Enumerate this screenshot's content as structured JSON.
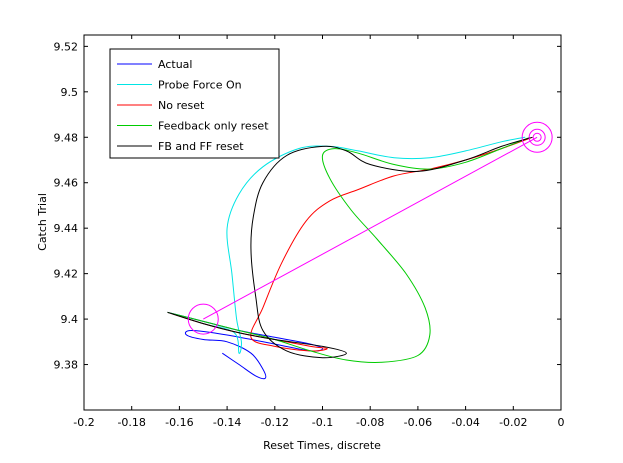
{
  "chart_data": {
    "type": "line",
    "title": "",
    "xlabel": "Reset Times, discrete",
    "ylabel": "Catch Trial",
    "xlim": [
      -0.2,
      0.0
    ],
    "ylim": [
      9.36,
      9.525
    ],
    "xticks": [
      -0.2,
      -0.18,
      -0.16,
      -0.14,
      -0.12,
      -0.1,
      -0.08,
      -0.06,
      -0.04,
      -0.02,
      0
    ],
    "xtick_labels": [
      "-0.2",
      "-0.18",
      "-0.16",
      "-0.14",
      "-0.12",
      "-0.1",
      "-0.08",
      "-0.06",
      "-0.04",
      "-0.02",
      "0"
    ],
    "yticks": [
      9.38,
      9.4,
      9.42,
      9.44,
      9.46,
      9.48,
      9.5,
      9.52
    ],
    "ytick_labels": [
      "9.38",
      "9.4",
      "9.42",
      "9.44",
      "9.46",
      "9.48",
      "9.5",
      "9.52"
    ],
    "grid": false,
    "legend_position": "top-left",
    "series": [
      {
        "name": "Actual",
        "color": "#0000ff",
        "x": [
          -0.165,
          -0.15,
          -0.135,
          -0.12,
          -0.105,
          -0.1,
          -0.105,
          -0.12,
          -0.14,
          -0.155,
          -0.157,
          -0.15,
          -0.14,
          -0.13,
          -0.125,
          -0.124,
          -0.128,
          -0.135,
          -0.142
        ],
        "y": [
          9.403,
          9.399,
          9.395,
          9.392,
          9.389,
          9.387,
          9.386,
          9.389,
          9.393,
          9.395,
          9.393,
          9.391,
          9.39,
          9.385,
          9.378,
          9.374,
          9.375,
          9.38,
          9.385
        ]
      },
      {
        "name": "Probe Force On",
        "color": "#00e5e5",
        "x": [
          -0.165,
          -0.15,
          -0.137,
          -0.135,
          -0.134,
          -0.136,
          -0.138,
          -0.14,
          -0.135,
          -0.125,
          -0.11,
          -0.097,
          -0.085,
          -0.07,
          -0.055,
          -0.04,
          -0.025,
          -0.015
        ],
        "y": [
          9.403,
          9.398,
          9.394,
          9.385,
          9.39,
          9.4,
          9.42,
          9.44,
          9.455,
          9.467,
          9.475,
          9.476,
          9.474,
          9.471,
          9.471,
          9.474,
          9.478,
          9.48
        ]
      },
      {
        "name": "No reset",
        "color": "#ff0000",
        "x": [
          -0.165,
          -0.15,
          -0.135,
          -0.12,
          -0.105,
          -0.098,
          -0.105,
          -0.12,
          -0.13,
          -0.125,
          -0.117,
          -0.107,
          -0.097,
          -0.085,
          -0.07,
          -0.055,
          -0.04,
          -0.025,
          -0.012
        ],
        "y": [
          9.403,
          9.398,
          9.394,
          9.391,
          9.388,
          9.387,
          9.386,
          9.388,
          9.392,
          9.405,
          9.425,
          9.443,
          9.452,
          9.457,
          9.463,
          9.466,
          9.47,
          9.475,
          9.48
        ]
      },
      {
        "name": "Feedback only reset",
        "color": "#00cc00",
        "x": [
          -0.165,
          -0.15,
          -0.135,
          -0.12,
          -0.105,
          -0.09,
          -0.075,
          -0.06,
          -0.055,
          -0.057,
          -0.065,
          -0.077,
          -0.088,
          -0.097,
          -0.1,
          -0.095,
          -0.085,
          -0.07,
          -0.055,
          -0.04,
          -0.025,
          -0.013
        ],
        "y": [
          9.403,
          9.399,
          9.395,
          9.391,
          9.386,
          9.382,
          9.381,
          9.384,
          9.393,
          9.405,
          9.42,
          9.435,
          9.448,
          9.462,
          9.472,
          9.475,
          9.473,
          9.468,
          9.466,
          9.469,
          9.475,
          9.48
        ]
      },
      {
        "name": "FB and FF reset",
        "color": "#000000",
        "x": [
          -0.165,
          -0.15,
          -0.135,
          -0.12,
          -0.1,
          -0.09,
          -0.1,
          -0.115,
          -0.125,
          -0.128,
          -0.13,
          -0.129,
          -0.125,
          -0.115,
          -0.1,
          -0.09,
          -0.08,
          -0.06,
          -0.04,
          -0.025,
          -0.012
        ],
        "y": [
          9.403,
          9.398,
          9.394,
          9.391,
          9.388,
          9.385,
          9.383,
          9.386,
          9.395,
          9.41,
          9.43,
          9.445,
          9.46,
          9.472,
          9.476,
          9.474,
          9.468,
          9.465,
          9.47,
          9.476,
          9.48
        ]
      },
      {
        "name": "",
        "color": "#ff00ff",
        "x": [
          -0.15,
          -0.01
        ],
        "y": [
          9.4,
          9.48
        ]
      }
    ],
    "markers": [
      {
        "x": -0.15,
        "y": 9.4,
        "color": "#ff00ff"
      },
      {
        "x": -0.01,
        "y": 9.48,
        "color": "#ff00ff"
      }
    ]
  }
}
